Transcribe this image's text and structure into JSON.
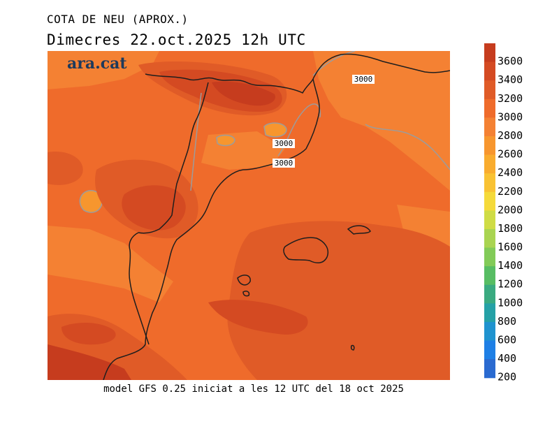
{
  "title": "COTA DE NEU (APROX.)",
  "subtitle": "Dimecres  22.oct.2025 12h UTC",
  "footer": "model GFS 0.25 iniciat a les 12 UTC del 18 oct 2025",
  "brand": "ara.cat",
  "contour_labels": [
    "3000",
    "3000",
    "3000"
  ],
  "legend": {
    "levels": [
      "3600",
      "3400",
      "3200",
      "3000",
      "2800",
      "2600",
      "2400",
      "2200",
      "2000",
      "1800",
      "1600",
      "1400",
      "1200",
      "1000",
      "800",
      "600",
      "400",
      "200"
    ],
    "colors": [
      "#c63c1e",
      "#d44a22",
      "#e05b27",
      "#ef6b2b",
      "#f48133",
      "#f7962e",
      "#f9ac2e",
      "#f9c233",
      "#f5da3a",
      "#cfdc45",
      "#a9d451",
      "#82cb58",
      "#57bd63",
      "#3aaa80",
      "#25a1a6",
      "#1f93cf",
      "#1e7fe5",
      "#2a6ad0"
    ]
  },
  "colors": {
    "background": "#ef6b2b",
    "border": "#1e1e1e",
    "contour": "#9c9c9c",
    "brand": "#1d3a5c"
  }
}
